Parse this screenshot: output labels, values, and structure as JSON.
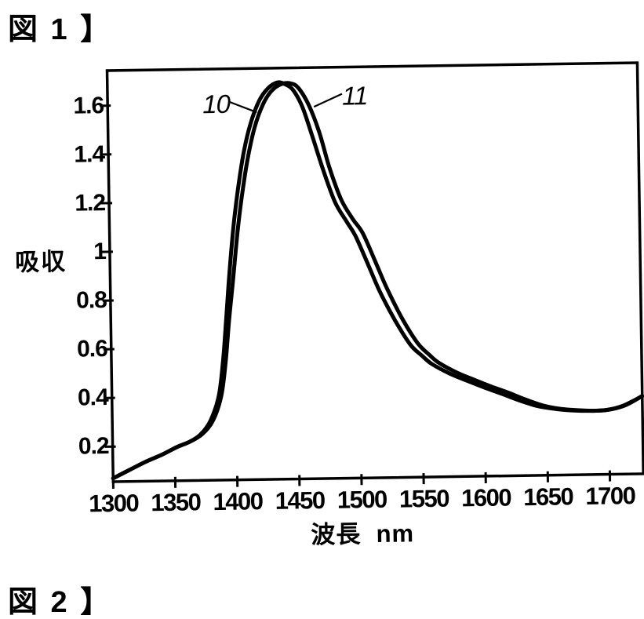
{
  "page": {
    "figure1_caption": "図 1 】",
    "figure2_caption": "図 2 】",
    "background_color": "#ffffff",
    "ink_color": "#000000"
  },
  "chart_data": {
    "type": "line",
    "title": "",
    "xlabel": "波長  nm",
    "ylabel": "吸収",
    "x_range": [
      1300,
      1727
    ],
    "y_range": [
      0.056,
      1.744
    ],
    "x_ticks": [
      1300,
      1350,
      1400,
      1450,
      1500,
      1550,
      1600,
      1650,
      1700
    ],
    "y_ticks": [
      0.2,
      0.4,
      0.6,
      0.8,
      1,
      1.2,
      1.4,
      1.6
    ],
    "y_tick_labels": [
      "0.2",
      "0.4",
      "0.6",
      "0.8",
      "1",
      "0.8",
      "0.6",
      "0.4"
    ],
    "grid": false,
    "legend": "none",
    "line_color": "#000000",
    "series": [
      {
        "name": "curve-10",
        "label": "10",
        "points": [
          [
            1300,
            0.07
          ],
          [
            1312,
            0.1
          ],
          [
            1326,
            0.135
          ],
          [
            1340,
            0.165
          ],
          [
            1352,
            0.195
          ],
          [
            1362,
            0.215
          ],
          [
            1371,
            0.245
          ],
          [
            1379,
            0.3
          ],
          [
            1386,
            0.4
          ],
          [
            1390,
            0.55
          ],
          [
            1393,
            0.72
          ],
          [
            1396,
            0.9
          ],
          [
            1400,
            1.1
          ],
          [
            1404,
            1.25
          ],
          [
            1409,
            1.4
          ],
          [
            1415,
            1.52
          ],
          [
            1422,
            1.61
          ],
          [
            1429,
            1.66
          ],
          [
            1437,
            1.685
          ],
          [
            1444,
            1.675
          ],
          [
            1450,
            1.65
          ],
          [
            1457,
            1.58
          ],
          [
            1464,
            1.47
          ],
          [
            1473,
            1.32
          ],
          [
            1482,
            1.19
          ],
          [
            1491,
            1.11
          ],
          [
            1498,
            1.05
          ],
          [
            1508,
            0.93
          ],
          [
            1517,
            0.82
          ],
          [
            1529,
            0.7
          ],
          [
            1541,
            0.6
          ],
          [
            1550,
            0.555
          ],
          [
            1558,
            0.52
          ],
          [
            1572,
            0.48
          ],
          [
            1587,
            0.447
          ],
          [
            1600,
            0.42
          ],
          [
            1613,
            0.395
          ],
          [
            1628,
            0.365
          ],
          [
            1643,
            0.34
          ],
          [
            1658,
            0.327
          ],
          [
            1672,
            0.32
          ],
          [
            1688,
            0.318
          ],
          [
            1700,
            0.322
          ],
          [
            1712,
            0.338
          ],
          [
            1727,
            0.375
          ]
        ]
      },
      {
        "name": "curve-11",
        "label": "11",
        "points": [
          [
            1300,
            0.07
          ],
          [
            1312,
            0.1
          ],
          [
            1326,
            0.135
          ],
          [
            1340,
            0.165
          ],
          [
            1352,
            0.195
          ],
          [
            1362,
            0.215
          ],
          [
            1372,
            0.245
          ],
          [
            1381,
            0.3
          ],
          [
            1388,
            0.4
          ],
          [
            1392,
            0.54
          ],
          [
            1395,
            0.7
          ],
          [
            1399,
            0.88
          ],
          [
            1403,
            1.07
          ],
          [
            1407,
            1.22
          ],
          [
            1412,
            1.37
          ],
          [
            1418,
            1.5
          ],
          [
            1425,
            1.595
          ],
          [
            1432,
            1.65
          ],
          [
            1440,
            1.678
          ],
          [
            1448,
            1.68
          ],
          [
            1454,
            1.66
          ],
          [
            1462,
            1.59
          ],
          [
            1470,
            1.48
          ],
          [
            1478,
            1.33
          ],
          [
            1487,
            1.2
          ],
          [
            1496,
            1.12
          ],
          [
            1504,
            1.06
          ],
          [
            1514,
            0.94
          ],
          [
            1523,
            0.83
          ],
          [
            1535,
            0.705
          ],
          [
            1547,
            0.605
          ],
          [
            1556,
            0.558
          ],
          [
            1564,
            0.523
          ],
          [
            1578,
            0.483
          ],
          [
            1593,
            0.45
          ],
          [
            1606,
            0.423
          ],
          [
            1619,
            0.398
          ],
          [
            1633,
            0.368
          ],
          [
            1648,
            0.341
          ],
          [
            1661,
            0.328
          ],
          [
            1675,
            0.321
          ],
          [
            1690,
            0.318
          ],
          [
            1702,
            0.323
          ],
          [
            1714,
            0.34
          ],
          [
            1727,
            0.376
          ]
        ]
      }
    ]
  }
}
